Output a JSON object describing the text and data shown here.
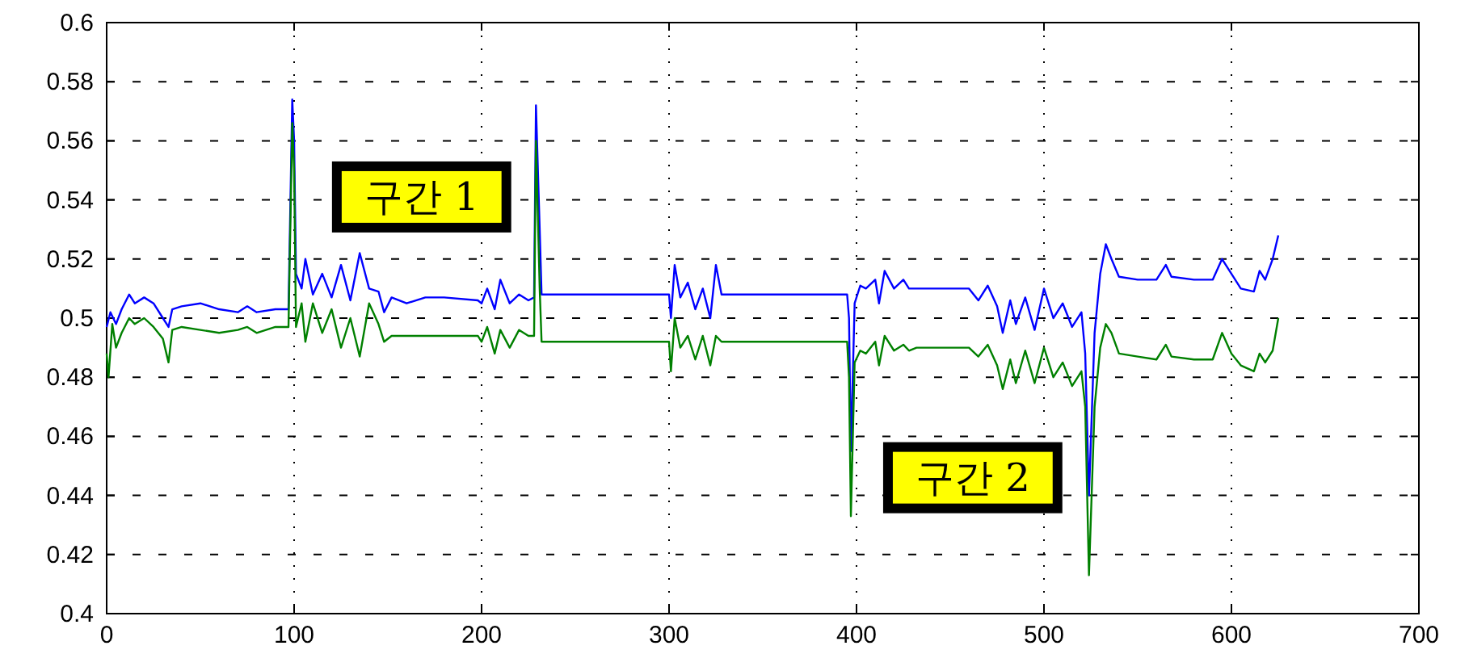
{
  "chart_data": {
    "type": "line",
    "xlim": [
      0,
      700
    ],
    "ylim": [
      0.4,
      0.6
    ],
    "xticks": [
      0,
      100,
      200,
      300,
      400,
      500,
      600,
      700
    ],
    "yticks": [
      0.4,
      0.42,
      0.44,
      0.46,
      0.48,
      0.5,
      0.52,
      0.54,
      0.56,
      0.58,
      0.6
    ],
    "grid": true,
    "line_style": "solid",
    "annotations": [
      "구간 1",
      "구간 2"
    ],
    "series": [
      {
        "color": "#0000ff",
        "x": [
          0,
          2,
          5,
          8,
          12,
          15,
          20,
          25,
          30,
          33,
          35,
          40,
          50,
          60,
          70,
          75,
          80,
          90,
          97,
          99,
          100,
          101,
          104,
          106,
          110,
          115,
          120,
          125,
          130,
          135,
          140,
          145,
          148,
          152,
          160,
          170,
          180,
          198,
          200,
          203,
          207,
          210,
          215,
          220,
          225,
          228,
          229,
          231,
          232,
          300,
          301,
          303,
          306,
          310,
          314,
          318,
          322,
          325,
          328,
          395,
          396,
          397,
          399,
          402,
          405,
          410,
          412,
          415,
          420,
          425,
          428,
          432,
          460,
          465,
          470,
          475,
          478,
          482,
          485,
          490,
          495,
          500,
          505,
          510,
          515,
          520,
          522,
          524,
          527,
          530,
          533,
          536,
          540,
          550,
          560,
          565,
          568,
          580,
          590,
          595,
          600,
          605,
          612,
          615,
          618,
          622,
          625
        ],
        "values": [
          0.497,
          0.502,
          0.498,
          0.503,
          0.508,
          0.505,
          0.507,
          0.505,
          0.5,
          0.497,
          0.503,
          0.504,
          0.505,
          0.503,
          0.502,
          0.504,
          0.502,
          0.503,
          0.503,
          0.574,
          0.56,
          0.515,
          0.51,
          0.52,
          0.508,
          0.515,
          0.507,
          0.518,
          0.506,
          0.522,
          0.51,
          0.509,
          0.502,
          0.507,
          0.505,
          0.507,
          0.507,
          0.506,
          0.505,
          0.51,
          0.503,
          0.513,
          0.505,
          0.508,
          0.506,
          0.507,
          0.572,
          0.53,
          0.508,
          0.508,
          0.5,
          0.518,
          0.507,
          0.512,
          0.503,
          0.51,
          0.5,
          0.518,
          0.508,
          0.508,
          0.5,
          0.455,
          0.505,
          0.511,
          0.51,
          0.513,
          0.505,
          0.516,
          0.51,
          0.513,
          0.51,
          0.51,
          0.51,
          0.506,
          0.511,
          0.504,
          0.495,
          0.506,
          0.498,
          0.507,
          0.496,
          0.51,
          0.5,
          0.505,
          0.497,
          0.502,
          0.488,
          0.44,
          0.495,
          0.515,
          0.525,
          0.52,
          0.514,
          0.513,
          0.513,
          0.518,
          0.514,
          0.513,
          0.513,
          0.52,
          0.515,
          0.51,
          0.509,
          0.516,
          0.513,
          0.52,
          0.528
        ]
      },
      {
        "color": "#008000",
        "x": [
          0,
          1,
          3,
          5,
          8,
          12,
          15,
          20,
          25,
          30,
          33,
          35,
          40,
          50,
          60,
          70,
          75,
          80,
          90,
          97,
          99,
          100,
          101,
          104,
          106,
          110,
          115,
          120,
          125,
          130,
          135,
          140,
          145,
          148,
          152,
          170,
          198,
          200,
          203,
          207,
          210,
          215,
          220,
          225,
          228,
          229,
          231,
          232,
          300,
          301,
          303,
          306,
          310,
          314,
          318,
          322,
          325,
          328,
          395,
          396,
          397,
          399,
          402,
          405,
          410,
          412,
          415,
          420,
          425,
          428,
          432,
          460,
          465,
          470,
          475,
          478,
          482,
          485,
          490,
          495,
          500,
          505,
          510,
          515,
          520,
          522,
          524,
          527,
          530,
          533,
          536,
          540,
          550,
          560,
          565,
          568,
          580,
          590,
          595,
          600,
          605,
          612,
          615,
          618,
          622,
          625
        ],
        "values": [
          0.488,
          0.48,
          0.498,
          0.49,
          0.495,
          0.5,
          0.498,
          0.5,
          0.497,
          0.493,
          0.485,
          0.496,
          0.497,
          0.496,
          0.495,
          0.496,
          0.497,
          0.495,
          0.497,
          0.497,
          0.566,
          0.55,
          0.497,
          0.505,
          0.492,
          0.505,
          0.495,
          0.503,
          0.49,
          0.5,
          0.487,
          0.505,
          0.498,
          0.492,
          0.494,
          0.494,
          0.494,
          0.492,
          0.497,
          0.488,
          0.496,
          0.49,
          0.496,
          0.494,
          0.494,
          0.56,
          0.51,
          0.492,
          0.492,
          0.482,
          0.5,
          0.49,
          0.494,
          0.486,
          0.494,
          0.484,
          0.494,
          0.492,
          0.492,
          0.48,
          0.433,
          0.485,
          0.489,
          0.488,
          0.492,
          0.484,
          0.494,
          0.489,
          0.491,
          0.489,
          0.49,
          0.49,
          0.487,
          0.491,
          0.484,
          0.476,
          0.486,
          0.478,
          0.489,
          0.478,
          0.49,
          0.48,
          0.485,
          0.477,
          0.482,
          0.47,
          0.413,
          0.47,
          0.49,
          0.498,
          0.495,
          0.488,
          0.487,
          0.486,
          0.491,
          0.487,
          0.486,
          0.486,
          0.495,
          0.488,
          0.484,
          0.482,
          0.488,
          0.485,
          0.489,
          0.5
        ]
      }
    ]
  }
}
